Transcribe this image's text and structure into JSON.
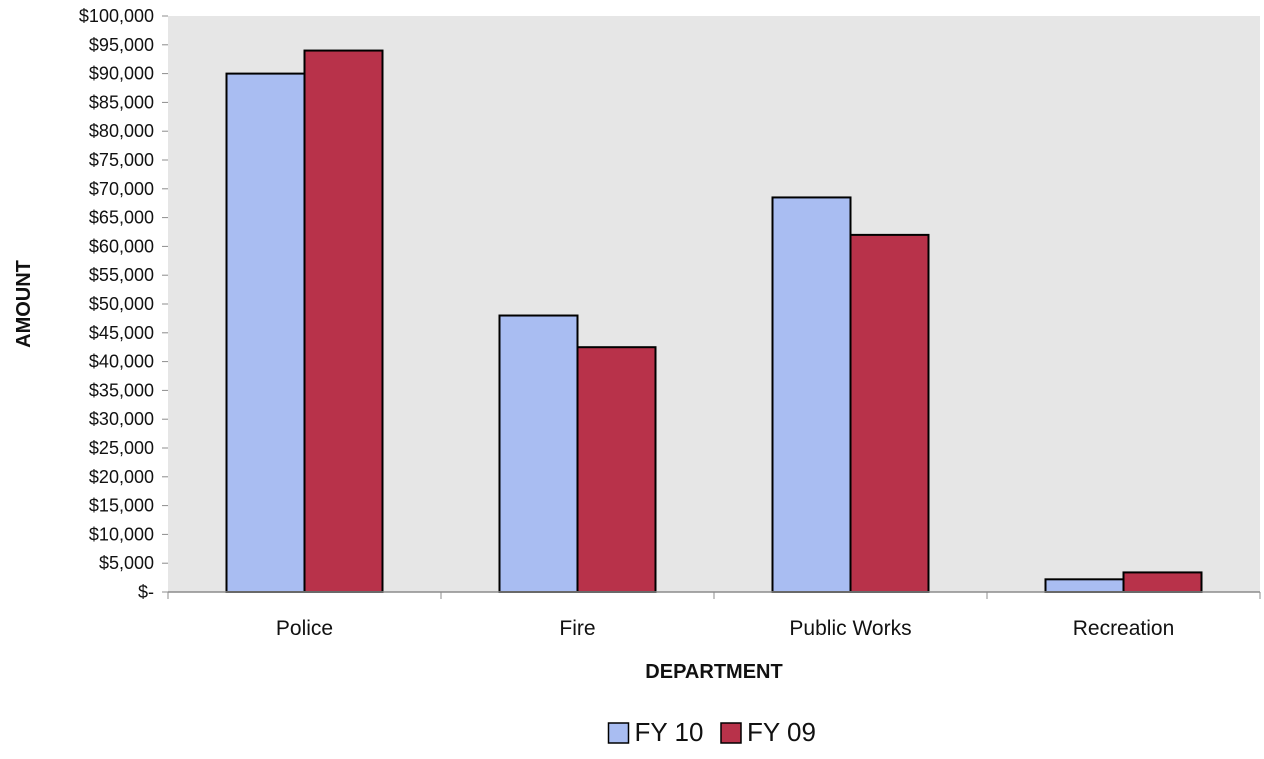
{
  "chart_data": {
    "type": "bar",
    "categories": [
      "Police",
      "Fire",
      "Public Works",
      "Recreation"
    ],
    "series": [
      {
        "name": "FY 10",
        "values": [
          90000,
          48000,
          68500,
          2200
        ],
        "color": "#a9bdf2"
      },
      {
        "name": "FY 09",
        "values": [
          94000,
          42500,
          62000,
          3400
        ],
        "color": "#b8324a"
      }
    ],
    "xlabel": "DEPARTMENT",
    "ylabel": "AMOUNT",
    "ylim": [
      0,
      100000
    ],
    "ytick_step": 5000,
    "ytick_labels": [
      "$-",
      "$5,000",
      "$10,000",
      "$15,000",
      "$20,000",
      "$25,000",
      "$30,000",
      "$35,000",
      "$40,000",
      "$45,000",
      "$50,000",
      "$55,000",
      "$60,000",
      "$65,000",
      "$70,000",
      "$75,000",
      "$80,000",
      "$85,000",
      "$90,000",
      "$95,000",
      "$100,000"
    ],
    "grid": false,
    "legend_position": "bottom",
    "plot_background": "#e6e6e6"
  }
}
